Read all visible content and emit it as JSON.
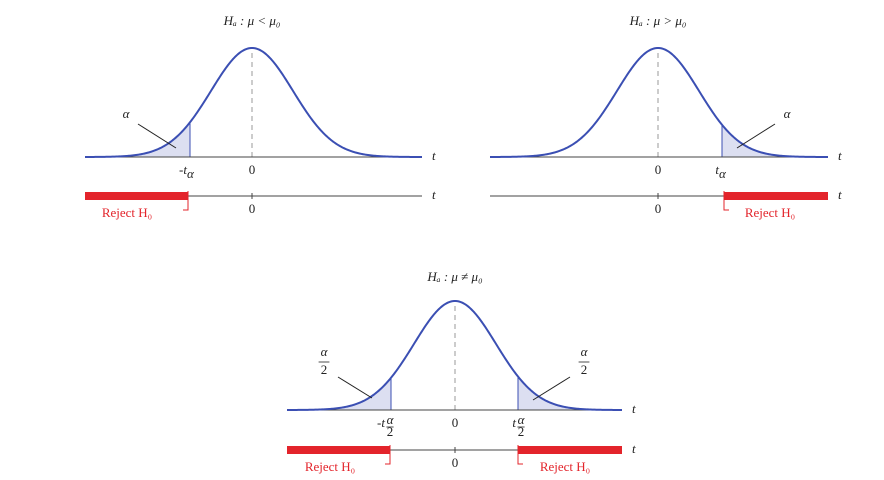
{
  "panels": [
    {
      "title": "Hₐ : μ < μ₀",
      "alpha_labels": [
        "α"
      ],
      "ticks": [
        {
          "base": "-t",
          "sub": "α"
        },
        "0"
      ],
      "axis": "t",
      "rejects": [
        "Reject H₀"
      ],
      "line_tick": "0",
      "line_axis": "t"
    },
    {
      "title": "Hₐ : μ > μ₀",
      "alpha_labels": [
        "α"
      ],
      "ticks": [
        "0",
        {
          "base": "t",
          "sub": "α"
        }
      ],
      "axis": "t",
      "rejects": [
        "Reject H₀"
      ],
      "line_tick": "0",
      "line_axis": "t"
    },
    {
      "title": "Hₐ : μ ≠ μ₀",
      "alpha_labels": [
        {
          "num": "α",
          "den": "2"
        },
        {
          "num": "α",
          "den": "2"
        }
      ],
      "ticks": [
        {
          "base": "-t",
          "sub": {
            "num": "α",
            "den": "2"
          }
        },
        "0",
        {
          "base": "t",
          "sub": {
            "num": "α",
            "den": "2"
          }
        }
      ],
      "axis": "t",
      "rejects": [
        "Reject H₀",
        "Reject H₀"
      ],
      "line_tick": "0",
      "line_axis": "t"
    }
  ]
}
